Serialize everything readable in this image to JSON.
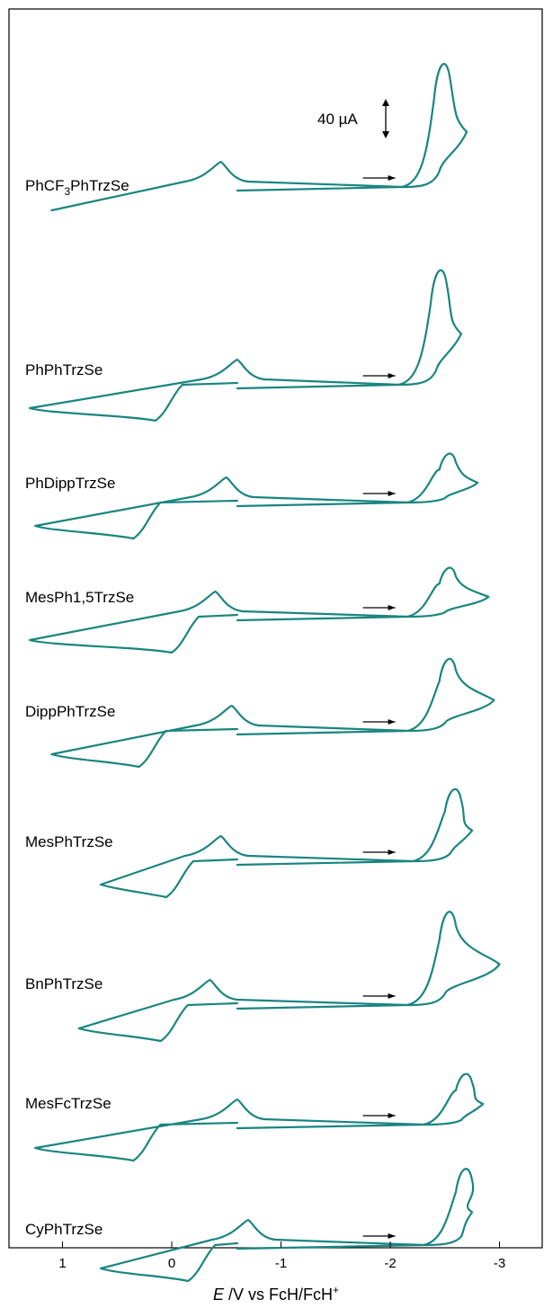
{
  "chart_data": {
    "type": "line",
    "xlabel": {
      "italic": "E",
      "mid": " /V vs FcH/FcH",
      "sup": "+"
    },
    "xlim": [
      1.45,
      -3.05
    ],
    "xticks": [
      "1",
      "0",
      "-1",
      "-2",
      "-3"
    ],
    "xtick_values": [
      1,
      0,
      -1,
      -2,
      -3
    ],
    "grid": false,
    "series_color": "#1a8580",
    "scale_bar": "40 µA",
    "series": [
      {
        "name": "PhCF3PhTrzSe",
        "name_parts": {
          "main": "PhCF",
          "sub": "3",
          "tail": "PhTrzSe"
        },
        "oxidation_limit": 1.1,
        "reduction_limit": -2.7,
        "reduction_peak": -2.45,
        "features": [
          -0.45
        ]
      },
      {
        "name": "PhPhTrzSe",
        "oxidation_limit": 1.3,
        "reduction_limit": -2.65,
        "reduction_peak": -2.42,
        "features": [
          -0.6,
          0.15
        ]
      },
      {
        "name": "PhDippTrzSe",
        "oxidation_limit": 1.25,
        "reduction_limit": -2.8,
        "reduction_peak": -2.5,
        "features": [
          -0.5,
          0.35
        ]
      },
      {
        "name": "MesPh1,5TrzSe",
        "oxidation_limit": 1.3,
        "reduction_limit": -2.9,
        "reduction_peak": -2.5,
        "features": [
          -0.4,
          0.0
        ]
      },
      {
        "name": "DippPhTrzSe",
        "oxidation_limit": 1.1,
        "reduction_limit": -2.95,
        "reduction_peak": -2.5,
        "features": [
          -0.55,
          0.3
        ]
      },
      {
        "name": "MesPhTrzSe",
        "oxidation_limit": 0.65,
        "reduction_limit": -2.75,
        "reduction_peak": -2.55,
        "features": [
          -0.45,
          0.05
        ]
      },
      {
        "name": "BnPhTrzSe",
        "oxidation_limit": 0.85,
        "reduction_limit": -3.0,
        "reduction_peak": -2.5,
        "features": [
          -0.35,
          0.1
        ]
      },
      {
        "name": "MesFcTrzSe",
        "oxidation_limit": 1.25,
        "reduction_limit": -2.85,
        "reduction_peak": -2.65,
        "features": [
          -0.6,
          0.35
        ]
      },
      {
        "name": "CyPhTrzSe",
        "oxidation_limit": 0.65,
        "reduction_limit": -2.75,
        "reduction_peak": -2.65,
        "features": [
          -0.7,
          -0.15
        ]
      }
    ]
  }
}
